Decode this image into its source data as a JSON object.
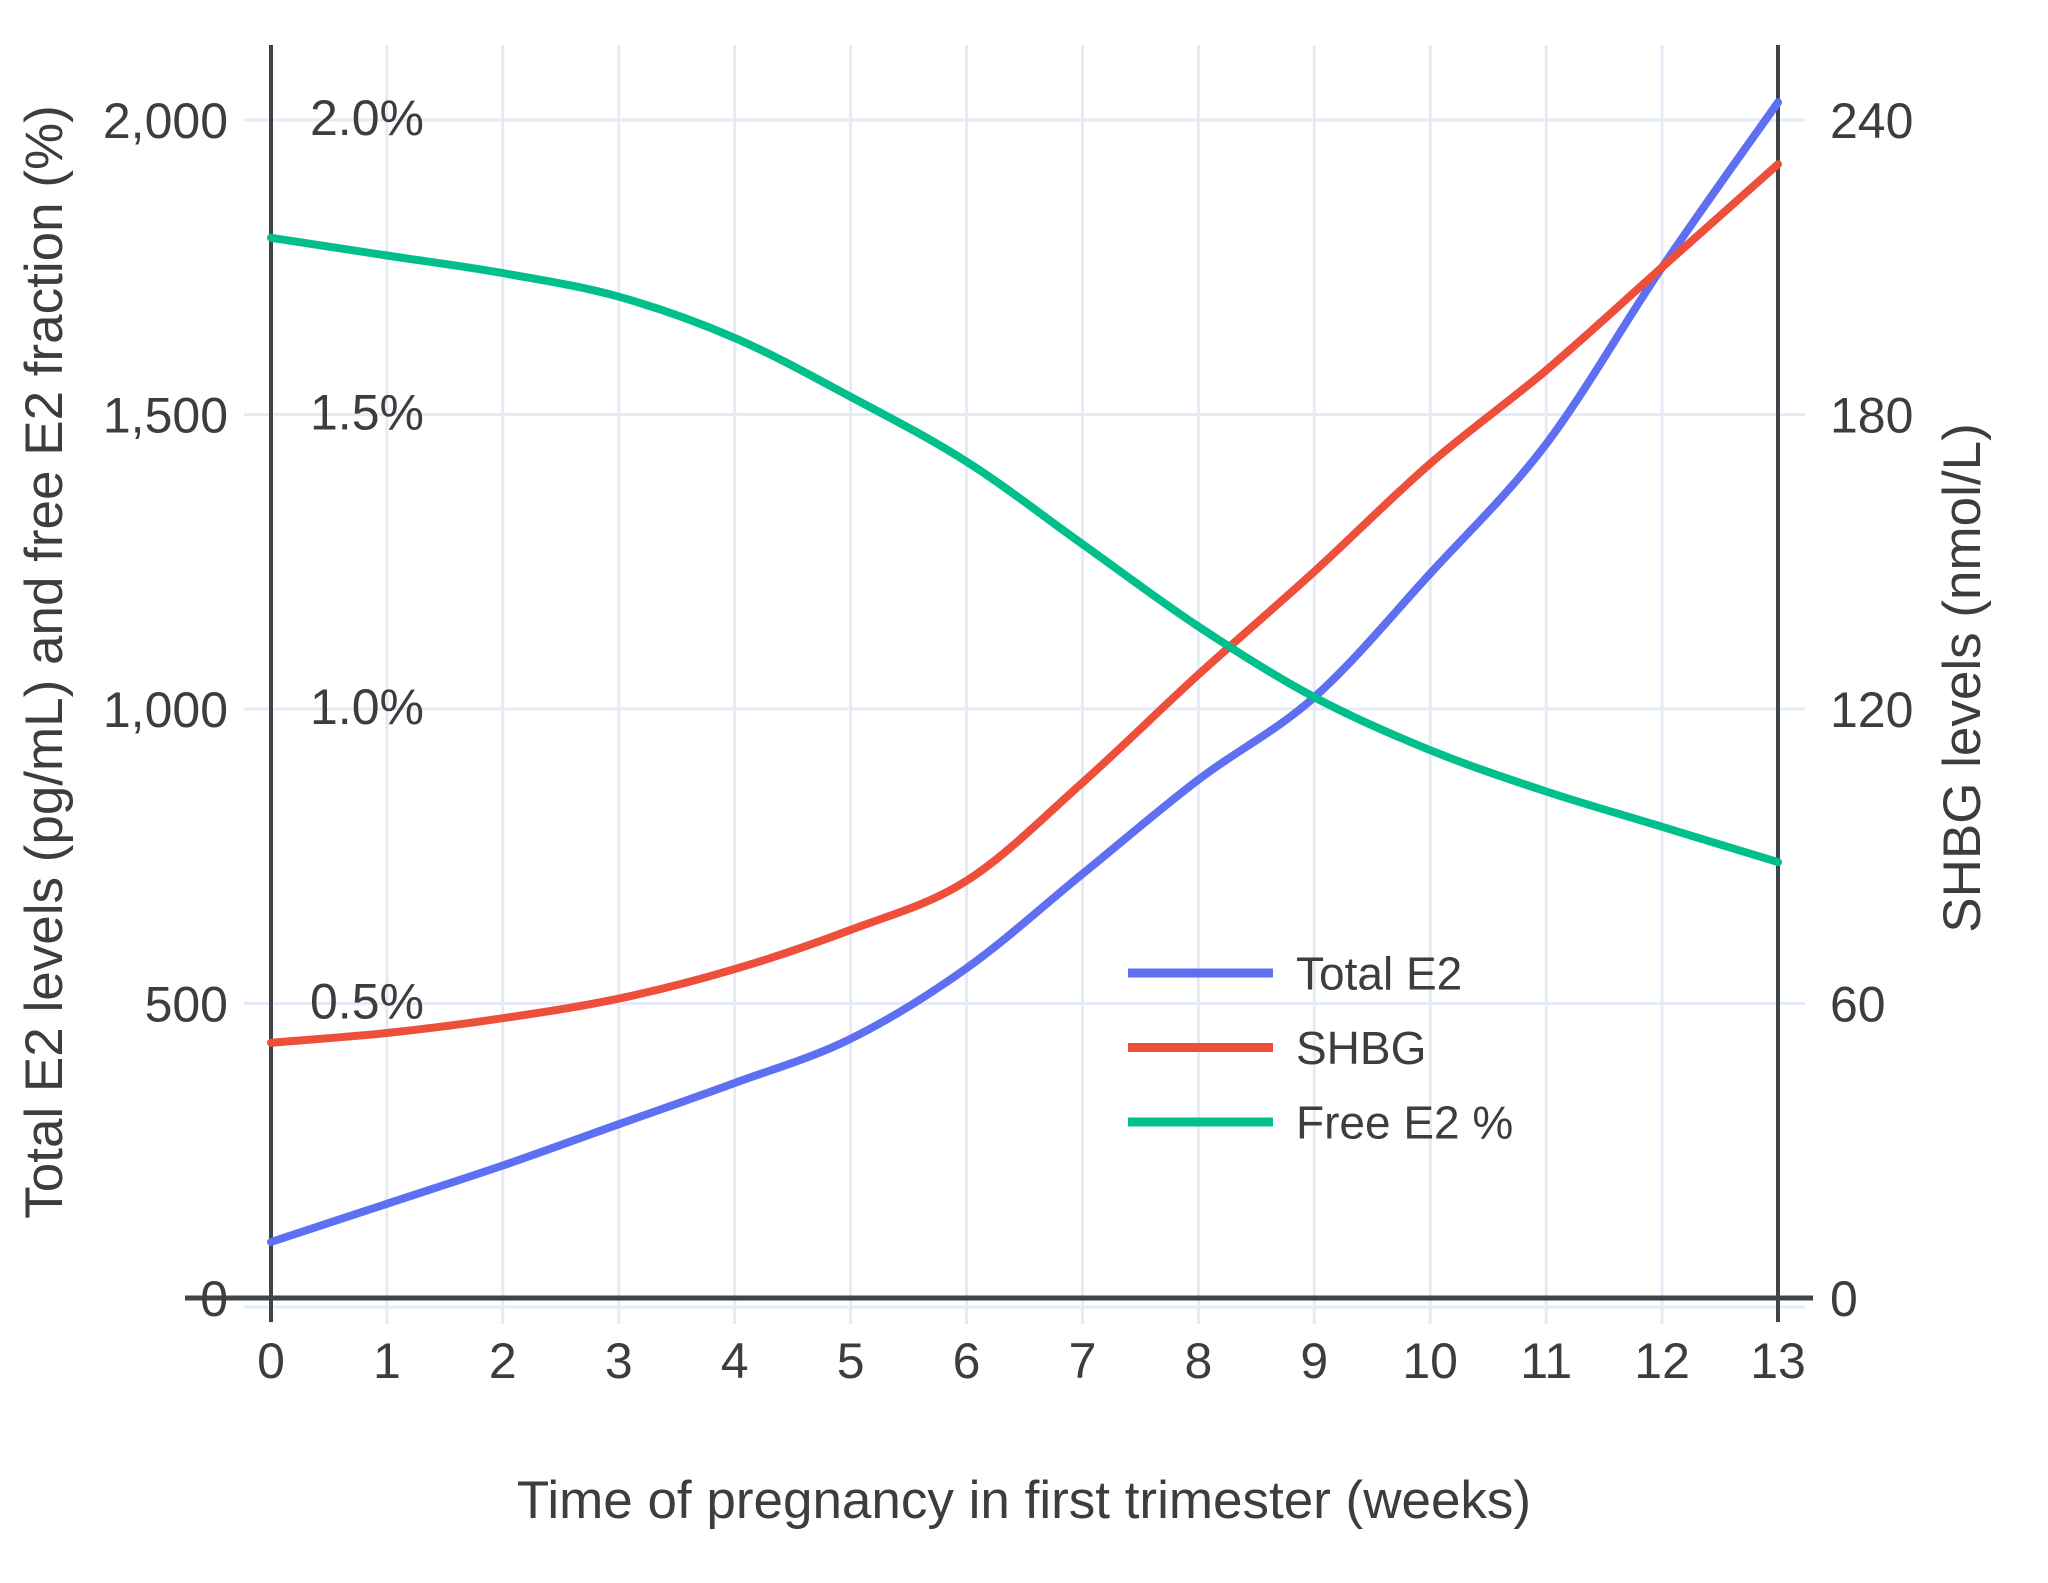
{
  "chart_data": {
    "type": "line",
    "x": [
      0,
      1,
      2,
      3,
      4,
      5,
      6,
      7,
      8,
      9,
      10,
      11,
      12,
      13
    ],
    "series": [
      {
        "name": "Total E2",
        "axis": "left",
        "unit": "pg/mL",
        "color": "#5e6ff2",
        "values": [
          95,
          160,
          225,
          295,
          365,
          440,
          560,
          720,
          880,
          1020,
          1230,
          1450,
          1750,
          2030
        ]
      },
      {
        "name": "SHBG",
        "axis": "right",
        "unit": "nmol/L",
        "color": "#ee4f3b",
        "values": [
          52,
          54,
          57,
          61,
          67,
          75,
          85,
          105,
          127,
          148,
          170,
          189,
          210,
          231
        ]
      },
      {
        "name": "Free E2 %",
        "axis": "percent",
        "unit": "%",
        "color": "#00bf8c",
        "values": [
          1.8,
          1.77,
          1.74,
          1.7,
          1.63,
          1.53,
          1.42,
          1.28,
          1.14,
          1.02,
          0.93,
          0.86,
          0.8,
          0.74
        ]
      }
    ],
    "title": "",
    "xlabel": "Time of pregnancy in first trimester (weeks)",
    "ylabel_left": "Total E2 levels (pg/mL) and free E2 fraction (%)",
    "ylabel_right": "SHBG levels (nmol/L)",
    "x_tick_labels": [
      "0",
      "1",
      "2",
      "3",
      "4",
      "5",
      "6",
      "7",
      "8",
      "9",
      "10",
      "11",
      "12",
      "13"
    ],
    "left_ticks": [
      {
        "value": 0,
        "label": "0"
      },
      {
        "value": 500,
        "label": "500"
      },
      {
        "value": 1000,
        "label": "1,000"
      },
      {
        "value": 1500,
        "label": "1,500"
      },
      {
        "value": 2000,
        "label": "2,000"
      }
    ],
    "percent_ticks": [
      {
        "value": 500,
        "label": "0.5%"
      },
      {
        "value": 1000,
        "label": "1.0%"
      },
      {
        "value": 1500,
        "label": "1.5%"
      },
      {
        "value": 2000,
        "label": "2.0%"
      }
    ],
    "right_ticks": [
      {
        "value": 0,
        "label": "0"
      },
      {
        "value": 60,
        "label": "60"
      },
      {
        "value": 120,
        "label": "120"
      },
      {
        "value": 180,
        "label": "180"
      },
      {
        "value": 240,
        "label": "240"
      }
    ],
    "xlim": [
      0,
      13
    ],
    "ylim_left": [
      0,
      2127
    ],
    "ylim_right": [
      0,
      255
    ],
    "right_to_left_scale_note": "right axis 240 aligns with left axis 2,000; percent 2.0% aligns with left 2,000",
    "grid": true,
    "legend_position": "inside-lower-right"
  },
  "colors": {
    "background": "#ffffff",
    "grid": "#e4ebf6",
    "axis_line": "#3f434a",
    "text": "#3d3d3d",
    "total_e2": "#5e6ff2",
    "shbg": "#ee4f3b",
    "free_e2": "#00bf8c"
  }
}
